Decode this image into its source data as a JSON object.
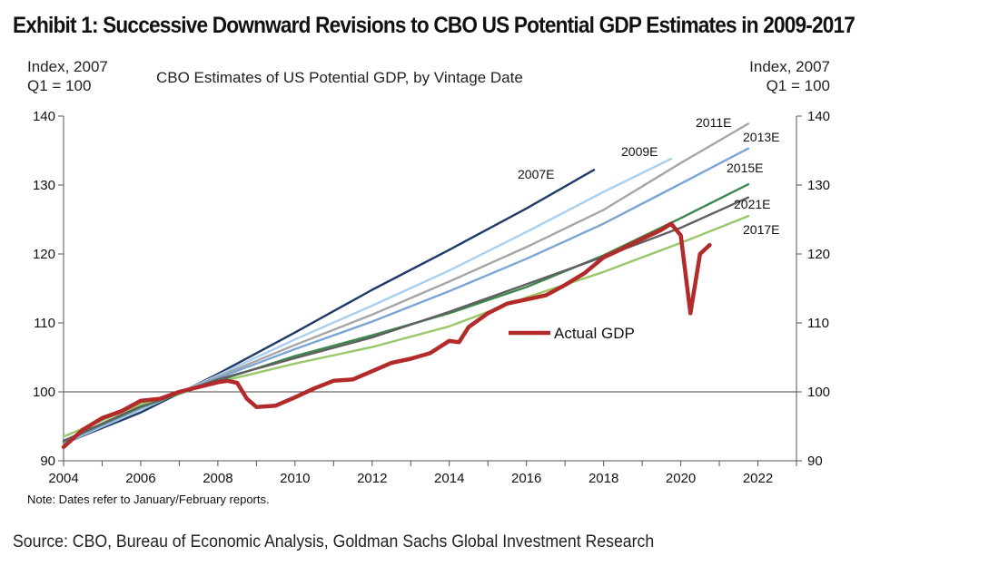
{
  "exhibit_title": "Exhibit 1: Successive Downward Revisions to CBO US Potential GDP Estimates in 2009-2017",
  "source": "Source: CBO, Bureau of Economic Analysis, Goldman Sachs Global Investment Research",
  "chart_data": {
    "type": "line",
    "title": "CBO Estimates of US Potential GDP, by Vintage Date",
    "ylabel_left": "Index, 2007\nQ1 = 100",
    "ylabel_right": "Index, 2007\nQ1 = 100",
    "note": "Note: Dates refer to January/February reports.",
    "xlim": [
      2004,
      2023
    ],
    "ylim": [
      90,
      140
    ],
    "x_ticks": [
      "2004",
      "2006",
      "2008",
      "2010",
      "2012",
      "2014",
      "2016",
      "2018",
      "2020",
      "2022"
    ],
    "y_ticks": [
      "90",
      "100",
      "110",
      "120",
      "130",
      "140"
    ],
    "reference_line": 100,
    "colors": {
      "2007E": "#1f3a68",
      "2009E": "#a9cff0",
      "2011E": "#a6a6a6",
      "2013E": "#7aa6d6",
      "2015E": "#3e8a4c",
      "2017E": "#98c86a",
      "2021E": "#5f5f5f",
      "Actual GDP": "#b32a2a",
      "reference": "#444444"
    },
    "series": [
      {
        "name": "2007E",
        "x": [
          2004,
          2006,
          2008,
          2010,
          2012,
          2014,
          2016,
          2017.75
        ],
        "y": [
          92.5,
          97,
          102.6,
          108.6,
          114.8,
          120.6,
          126.6,
          132.2
        ]
      },
      {
        "name": "2009E",
        "x": [
          2004,
          2006,
          2008,
          2010,
          2012,
          2014,
          2016,
          2018,
          2019.75
        ],
        "y": [
          92.5,
          97.4,
          102.4,
          107.6,
          112.5,
          117.6,
          123.2,
          129,
          133.8
        ]
      },
      {
        "name": "2011E",
        "x": [
          2004,
          2006,
          2008,
          2010,
          2012,
          2014,
          2016,
          2018,
          2020,
          2021.75
        ],
        "y": [
          92.6,
          97.6,
          102.2,
          106.8,
          111.2,
          116,
          121,
          126.4,
          133.2,
          138.9
        ]
      },
      {
        "name": "2013E",
        "x": [
          2004,
          2006,
          2008,
          2010,
          2012,
          2014,
          2016,
          2018,
          2020,
          2021.75
        ],
        "y": [
          92.6,
          97.7,
          102,
          106.2,
          110.2,
          114.6,
          119.3,
          124.4,
          130.2,
          135.3
        ]
      },
      {
        "name": "2015E",
        "x": [
          2004,
          2006,
          2008,
          2010,
          2012,
          2014,
          2016,
          2018,
          2020,
          2021.75
        ],
        "y": [
          92.8,
          97.8,
          101.6,
          105.2,
          108.2,
          111.4,
          115.2,
          119.8,
          125.2,
          130.1
        ]
      },
      {
        "name": "2021E",
        "x": [
          2004,
          2006,
          2008,
          2010,
          2012,
          2014,
          2016,
          2018,
          2020,
          2021.75
        ],
        "y": [
          92.9,
          97.9,
          101.8,
          104.9,
          107.9,
          111.6,
          115.6,
          119.6,
          123.8,
          128.2
        ]
      },
      {
        "name": "2017E",
        "x": [
          2004,
          2006,
          2008,
          2010,
          2012,
          2014,
          2016,
          2018,
          2020,
          2021.75
        ],
        "y": [
          93.5,
          98.2,
          101.4,
          104.1,
          106.5,
          109.5,
          113.7,
          117.4,
          121.6,
          125.5
        ]
      },
      {
        "name": "Actual GDP",
        "x": [
          2004,
          2004.5,
          2005,
          2005.5,
          2006,
          2006.5,
          2007,
          2007.5,
          2008,
          2008.25,
          2008.5,
          2008.75,
          2009,
          2009.5,
          2010,
          2010.5,
          2011,
          2011.5,
          2012,
          2012.5,
          2013,
          2013.5,
          2014,
          2014.25,
          2014.5,
          2015,
          2015.5,
          2016,
          2016.5,
          2017,
          2017.5,
          2018,
          2018.5,
          2019,
          2019.5,
          2019.75,
          2020,
          2020.25,
          2020.5,
          2020.75
        ],
        "y": [
          92,
          94.5,
          96.2,
          97.2,
          98.7,
          99,
          100,
          100.7,
          101.4,
          101.6,
          101.3,
          99,
          97.8,
          98,
          99.2,
          100.5,
          101.6,
          101.8,
          103,
          104.2,
          104.8,
          105.6,
          107.4,
          107.2,
          109.4,
          111.4,
          112.8,
          113.4,
          114,
          115.5,
          117.2,
          119.5,
          120.8,
          122.2,
          123.5,
          124.4,
          122.7,
          111.4,
          120,
          121.3
        ]
      }
    ],
    "series_labels": [
      "2007E",
      "2009E",
      "2011E",
      "2013E",
      "2015E",
      "2021E",
      "2017E"
    ],
    "legend": {
      "label": "Actual GDP",
      "placement": "center-right"
    }
  }
}
